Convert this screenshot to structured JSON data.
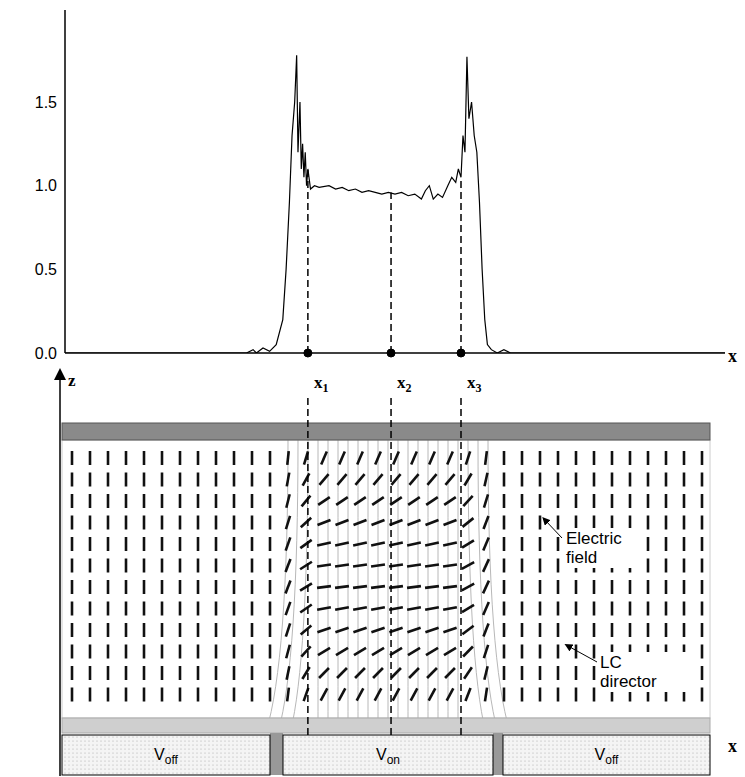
{
  "chart_data": {
    "type": "line",
    "x": [
      0,
      20,
      27.5,
      28.5,
      29,
      30,
      31,
      32,
      33,
      33.5,
      34,
      34.4,
      34.8,
      35.1,
      35.3,
      35.6,
      35.8,
      36.0,
      36.2,
      36.4,
      36.6,
      36.8,
      37.2,
      37.8,
      38.5,
      40,
      41,
      42,
      43,
      44,
      45,
      46,
      47,
      48,
      49,
      50,
      51,
      52,
      53,
      54,
      54.6,
      55.2,
      55.8,
      56.5,
      57.2,
      58,
      58.6,
      59.2,
      59.6,
      60,
      60.3,
      60.6,
      60.9,
      61.2,
      61.6,
      62,
      62.4,
      62.8,
      63.2,
      63.6,
      64,
      64.6,
      65.5,
      66.5,
      67.5,
      100
    ],
    "values": [
      0,
      0,
      0,
      0.02,
      0,
      0.03,
      0.01,
      0.05,
      0.2,
      0.5,
      0.9,
      1.3,
      1.5,
      1.78,
      1.2,
      1.5,
      1.1,
      1.25,
      1.05,
      1.2,
      1.0,
      1.1,
      0.98,
      1.0,
      0.99,
      1.0,
      0.98,
      0.99,
      0.97,
      0.98,
      0.96,
      0.97,
      0.96,
      0.95,
      0.96,
      0.95,
      0.96,
      0.94,
      0.95,
      0.92,
      0.97,
      1.0,
      0.92,
      0.95,
      0.93,
      1.0,
      1.05,
      1.02,
      1.1,
      1.05,
      1.3,
      1.2,
      1.77,
      1.4,
      1.5,
      1.3,
      1.2,
      0.9,
      0.5,
      0.2,
      0.05,
      0.02,
      0.0,
      0.02,
      0.0,
      0
    ],
    "color": "#000000",
    "xlim": [
      0,
      100
    ],
    "ylim": [
      0,
      2.05
    ],
    "yticks": [
      {
        "value": 0,
        "label": "0.0"
      },
      0.5,
      {
        "value": 1,
        "label": "1.0"
      },
      1.5
    ],
    "x_label": "x",
    "tick_labels": "y",
    "grid": false,
    "annotations": [
      {
        "text": "x",
        "sub": "1",
        "x": 36.8
      },
      {
        "text": "x",
        "sub": "2",
        "x": 49.4
      },
      {
        "text": "x",
        "sub": "3",
        "x": 60.0
      }
    ]
  },
  "diagram": {
    "z_label": "z",
    "x_label": "x",
    "labels": [
      "Electric field",
      "LC director"
    ],
    "electrodes": [
      {
        "text": "V",
        "sub": "off"
      },
      {
        "text": "V",
        "sub": "on"
      },
      {
        "text": "V",
        "sub": "off"
      }
    ]
  }
}
